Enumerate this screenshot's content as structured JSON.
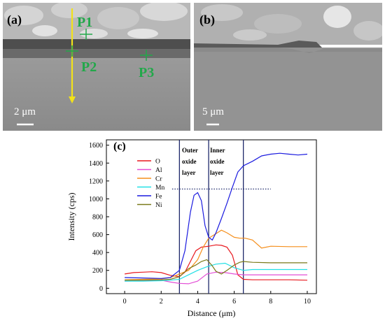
{
  "panel_a": {
    "label": "(a)",
    "points": [
      "P1",
      "P2",
      "P3"
    ],
    "scale_bar": "2 μm",
    "colors": {
      "points": "#22a84a",
      "scan_line": "#f2e21a"
    }
  },
  "panel_b": {
    "label": "(b)",
    "scale_bar": "5 μm"
  },
  "panel_c": {
    "label": "(c)",
    "annotations": {
      "outer": [
        "Outer",
        "oxide",
        "layer"
      ],
      "inner": [
        "Inner",
        "oxide",
        "layer"
      ]
    }
  },
  "chart_data": {
    "type": "line",
    "xlabel": "Distance (μm)",
    "ylabel": "Intensity (cps)",
    "xlim": [
      -1,
      10.5
    ],
    "ylim": [
      -60,
      1660
    ],
    "xticks": [
      0,
      2,
      4,
      6,
      8,
      10
    ],
    "yticks": [
      0,
      200,
      400,
      600,
      800,
      1000,
      1200,
      1400,
      1600
    ],
    "grid": false,
    "legend": "left",
    "vlines": [
      3.0,
      4.6,
      6.5
    ],
    "hline": {
      "y": 1110,
      "x": [
        2.6,
        8.0
      ]
    },
    "series": [
      {
        "name": "O",
        "color": "#e8191f",
        "x": [
          0,
          0.5,
          1,
          1.5,
          2,
          2.5,
          3,
          3.3,
          3.6,
          3.9,
          4.2,
          4.6,
          5,
          5.3,
          5.6,
          5.9,
          6.2,
          6.5,
          7,
          8,
          9,
          10
        ],
        "y": [
          160,
          175,
          180,
          185,
          175,
          145,
          130,
          180,
          300,
          420,
          460,
          470,
          485,
          480,
          460,
          370,
          150,
          100,
          95,
          95,
          95,
          90
        ]
      },
      {
        "name": "Al",
        "color": "#e34ed6",
        "x": [
          0,
          1,
          2,
          2.5,
          3,
          3.5,
          4,
          4.5,
          5,
          5.5,
          6,
          6.5,
          7,
          8,
          9,
          10
        ],
        "y": [
          80,
          85,
          90,
          70,
          55,
          50,
          80,
          160,
          180,
          175,
          160,
          150,
          150,
          150,
          150,
          150
        ]
      },
      {
        "name": "Cr",
        "color": "#f58f1c",
        "x": [
          0,
          1,
          2,
          2.5,
          3,
          3.5,
          4,
          4.3,
          4.6,
          5,
          5.3,
          5.6,
          6,
          6.3,
          6.6,
          7,
          7.5,
          8,
          9,
          10
        ],
        "y": [
          95,
          100,
          105,
          120,
          160,
          200,
          320,
          460,
          560,
          610,
          650,
          620,
          570,
          560,
          560,
          540,
          450,
          470,
          465,
          465
        ]
      },
      {
        "name": "Mn",
        "color": "#22e0e6",
        "x": [
          0,
          1,
          2,
          2.5,
          3,
          3.5,
          4,
          4.5,
          5,
          5.5,
          6,
          6.5,
          7,
          8,
          9,
          10
        ],
        "y": [
          80,
          80,
          85,
          90,
          100,
          150,
          200,
          240,
          270,
          280,
          230,
          200,
          210,
          210,
          210,
          210
        ]
      },
      {
        "name": "Fe",
        "color": "#1a1adf",
        "x": [
          0,
          1,
          2,
          2.5,
          3,
          3.3,
          3.6,
          3.8,
          4,
          4.2,
          4.4,
          4.6,
          4.8,
          5,
          5.3,
          5.6,
          5.9,
          6.2,
          6.5,
          7,
          7.5,
          8,
          8.5,
          9,
          9.5,
          10
        ],
        "y": [
          120,
          115,
          110,
          120,
          200,
          420,
          850,
          1040,
          1070,
          980,
          700,
          570,
          540,
          620,
          780,
          950,
          1130,
          1300,
          1370,
          1420,
          1480,
          1500,
          1510,
          1500,
          1490,
          1500
        ]
      },
      {
        "name": "Ni",
        "color": "#7a7a1a",
        "x": [
          0,
          1,
          2,
          2.5,
          3,
          3.5,
          3.9,
          4.2,
          4.5,
          4.8,
          5,
          5.3,
          5.6,
          6,
          6.3,
          6.5,
          7,
          8,
          9,
          10
        ],
        "y": [
          90,
          90,
          95,
          100,
          130,
          220,
          260,
          300,
          320,
          250,
          190,
          160,
          200,
          260,
          290,
          300,
          290,
          285,
          285,
          285
        ]
      }
    ]
  }
}
